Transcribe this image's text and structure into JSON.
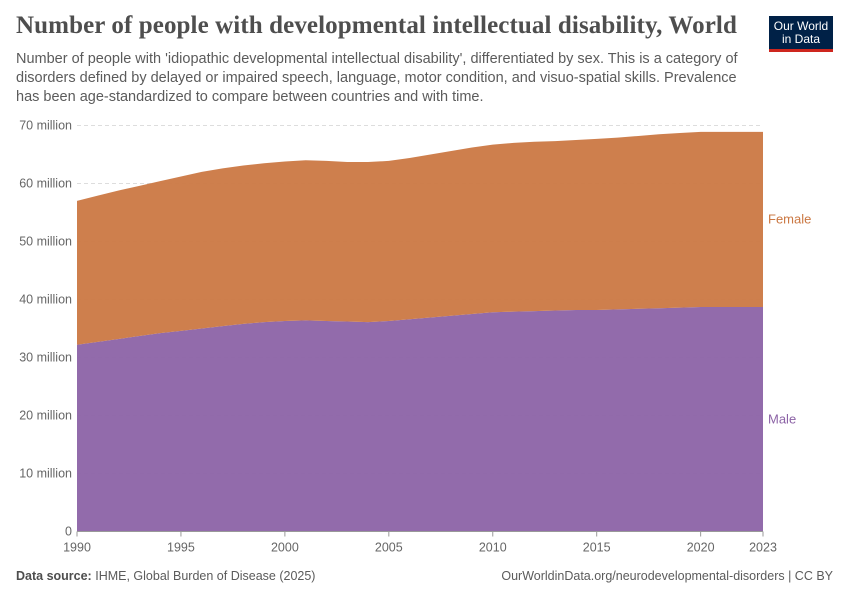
{
  "header": {
    "title": "Number of people with developmental intellectual disability, World",
    "subtitle": "Number of people with 'idiopathic developmental intellectual disability', differentiated by sex. This is a category of disorders defined by delayed or impaired speech, language, motor condition, and visuo-spatial skills. Prevalence has been age-standardized to compare between countries and with time.",
    "logo": "Our World in Data"
  },
  "footer": {
    "source_label": "Data source:",
    "source": "IHME, Global Burden of Disease (2025)",
    "url": "OurWorldinData.org/neurodevelopmental-disorders | CC BY"
  },
  "chart_data": {
    "type": "area",
    "stacked": true,
    "x": [
      1990,
      1991,
      1992,
      1993,
      1994,
      1995,
      1996,
      1997,
      1998,
      1999,
      2000,
      2001,
      2002,
      2003,
      2004,
      2005,
      2006,
      2007,
      2008,
      2009,
      2010,
      2011,
      2012,
      2013,
      2014,
      2015,
      2016,
      2017,
      2018,
      2019,
      2020,
      2021,
      2022,
      2023
    ],
    "series": [
      {
        "name": "Male",
        "color": "#8c63a6",
        "values": [
          32.2,
          32.7,
          33.2,
          33.7,
          34.2,
          34.6,
          35.0,
          35.4,
          35.8,
          36.1,
          36.3,
          36.4,
          36.3,
          36.2,
          36.1,
          36.3,
          36.6,
          36.9,
          37.2,
          37.5,
          37.8,
          37.9,
          38.0,
          38.1,
          38.2,
          38.2,
          38.3,
          38.4,
          38.5,
          38.6,
          38.7,
          38.7,
          38.7,
          38.7
        ]
      },
      {
        "name": "Female",
        "color": "#cb7843",
        "values": [
          24.8,
          25.2,
          25.6,
          25.9,
          26.2,
          26.6,
          27.0,
          27.2,
          27.3,
          27.4,
          27.5,
          27.6,
          27.6,
          27.5,
          27.6,
          27.6,
          27.8,
          28.1,
          28.4,
          28.7,
          28.9,
          29.1,
          29.2,
          29.2,
          29.3,
          29.5,
          29.6,
          29.8,
          30.0,
          30.1,
          30.2,
          30.2,
          30.2,
          30.2
        ]
      }
    ],
    "value_unit": "million",
    "ylim": [
      0,
      70
    ],
    "xlim": [
      1990,
      2023
    ],
    "yticks": [
      0,
      10,
      20,
      30,
      40,
      50,
      60,
      70
    ],
    "ytick_labels": [
      "0",
      "10 million",
      "20 million",
      "30 million",
      "40 million",
      "50 million",
      "60 million",
      "70 million"
    ],
    "xticks": [
      1990,
      1995,
      2000,
      2005,
      2010,
      2015,
      2020,
      2023
    ],
    "xtick_labels": [
      "1990",
      "1995",
      "2000",
      "2005",
      "2010",
      "2015",
      "2020",
      "2023"
    ],
    "grid": "horizontal dashed",
    "legend": "right, inline labels"
  }
}
